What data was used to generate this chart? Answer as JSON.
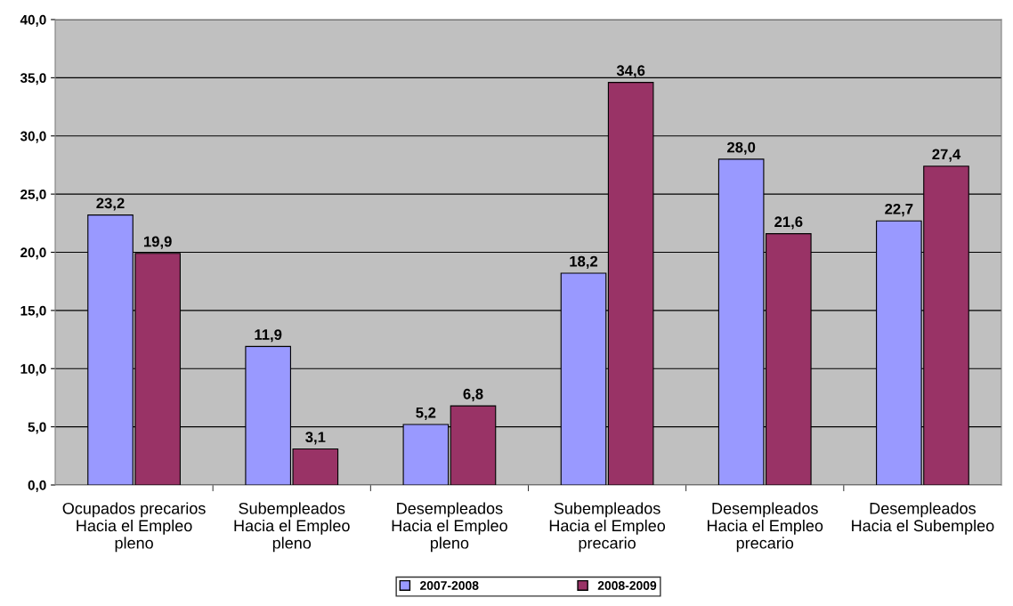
{
  "chart_data": {
    "type": "bar",
    "categories": [
      "Ocupados precarios\nHacia el Empleo\npleno",
      "Subempleados\nHacia el Empleo\npleno",
      "Desempleados\nHacia el Empleo\npleno",
      "Subempleados\nHacia el Empleo\nprecario",
      "Desempleados\nHacia el Empleo\nprecario",
      "Desempleados\nHacia el Subempleo"
    ],
    "series": [
      {
        "name": "2007-2008",
        "color": "#9999ff",
        "values": [
          23.2,
          11.9,
          5.2,
          18.2,
          28.0,
          22.7
        ],
        "value_labels": [
          "23,2",
          "11,9",
          "5,2",
          "18,2",
          "28,0",
          "22,7"
        ]
      },
      {
        "name": "2008-2009",
        "color": "#993366",
        "values": [
          19.9,
          3.1,
          6.8,
          34.6,
          21.6,
          27.4
        ],
        "value_labels": [
          "19,9",
          "3,1",
          "6,8",
          "34,6",
          "21,6",
          "27,4"
        ]
      }
    ],
    "ylim": [
      0,
      40
    ],
    "yticks": [
      {
        "value": 0,
        "label": "0,0"
      },
      {
        "value": 5,
        "label": "5,0"
      },
      {
        "value": 10,
        "label": "10,0"
      },
      {
        "value": 15,
        "label": "15,0"
      },
      {
        "value": 20,
        "label": "20,0"
      },
      {
        "value": 25,
        "label": "25,0"
      },
      {
        "value": 30,
        "label": "30,0"
      },
      {
        "value": 35,
        "label": "35,0"
      },
      {
        "value": 40,
        "label": "40,0"
      }
    ],
    "grid": "y",
    "legend": "bottom"
  }
}
